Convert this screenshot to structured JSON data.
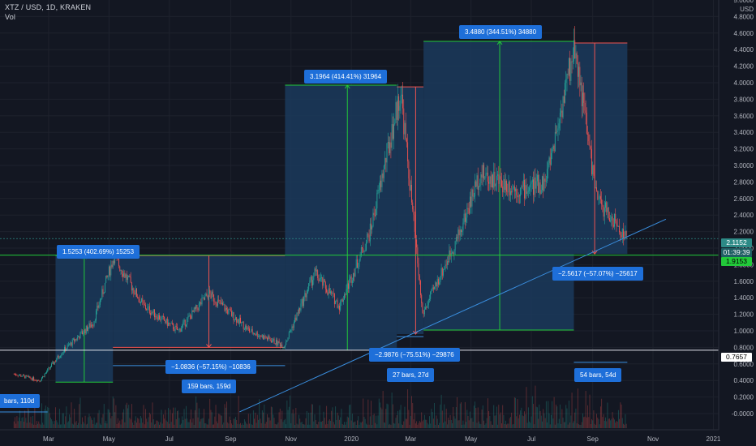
{
  "header": {
    "symbol_line": "XTZ / USD, 1D, KRAKEN",
    "volume_label": "Vol"
  },
  "y_axis": {
    "currency_label": "USD",
    "ticks": [
      "5.0000",
      "4.8000",
      "4.6000",
      "4.4000",
      "4.2000",
      "4.0000",
      "3.8000",
      "3.6000",
      "3.4000",
      "3.2000",
      "3.0000",
      "2.8000",
      "2.6000",
      "2.4000",
      "2.2000",
      "2.0000",
      "1.8000",
      "1.6000",
      "1.4000",
      "1.2000",
      "1.0000",
      "0.8000",
      "0.6000",
      "0.4000",
      "0.2000",
      "-0.0000"
    ]
  },
  "x_axis": {
    "ticks": [
      "Mar",
      "May",
      "Jul",
      "Sep",
      "Nov",
      "2020",
      "Mar",
      "May",
      "Jul",
      "Sep",
      "Nov",
      "2021"
    ]
  },
  "price_boxes": {
    "current_price": "2.1152",
    "countdown": "01:39:39",
    "support_level": "1.9153",
    "low_level": "0.7657",
    "colors": {
      "current": "#2d8a86",
      "support": "#22c93a",
      "low": "#ffffff"
    }
  },
  "annotations": {
    "rise_1": "1.5253 (402.69%) 15253",
    "fall_1": "−1.0836 (−57.15%) −10836",
    "bars_1": "159 bars, 159d",
    "bars_0": "bars, 110d",
    "rise_2": "3.1964 (414.41%) 31964",
    "fall_2": "−2.9876 (−75.51%) −29876",
    "bars_2": "27 bars, 27d",
    "rise_3": "3.4880 (344.51%) 34880",
    "fall_3": "−2.5617 (−57.07%) −25617",
    "bars_3": "54 bars, 54d"
  },
  "colors": {
    "background": "#131722",
    "grid": "#1e222d",
    "up_candle": "#26a69a",
    "down_candle": "#ef5350",
    "measure_fill": "#1b3a5c",
    "measure_border_green": "#22c93a",
    "measure_border_red": "#ef5350",
    "annotation_blue": "#1e6fd9",
    "trendline": "#3a8fe0",
    "support_line": "#22c93a"
  },
  "chart_data": {
    "type": "candlestick",
    "title": "XTZ / USD, 1D, KRAKEN",
    "ylabel": "USD",
    "ylim": [
      -0.05,
      5.0
    ],
    "key_points": [
      {
        "date": "2019-01-25",
        "close": 0.48
      },
      {
        "date": "2019-02-20",
        "close": 0.4
      },
      {
        "date": "2019-03-15",
        "close": 0.75
      },
      {
        "date": "2019-04-15",
        "close": 1.1
      },
      {
        "date": "2019-05-06",
        "close": 1.9
      },
      {
        "date": "2019-06-05",
        "close": 1.3
      },
      {
        "date": "2019-07-10",
        "close": 1.0
      },
      {
        "date": "2019-08-10",
        "close": 1.45
      },
      {
        "date": "2019-09-20",
        "close": 1.0
      },
      {
        "date": "2019-10-25",
        "close": 0.82
      },
      {
        "date": "2019-11-25",
        "close": 1.7
      },
      {
        "date": "2019-12-20",
        "close": 1.3
      },
      {
        "date": "2020-01-20",
        "close": 2.2
      },
      {
        "date": "2020-02-20",
        "close": 3.9
      },
      {
        "date": "2020-03-13",
        "close": 1.2
      },
      {
        "date": "2020-04-20",
        "close": 2.2
      },
      {
        "date": "2020-05-10",
        "close": 2.9
      },
      {
        "date": "2020-06-20",
        "close": 2.7
      },
      {
        "date": "2020-07-15",
        "close": 2.8
      },
      {
        "date": "2020-08-14",
        "close": 4.45
      },
      {
        "date": "2020-09-05",
        "close": 2.6
      },
      {
        "date": "2020-10-05",
        "close": 2.12
      }
    ]
  }
}
